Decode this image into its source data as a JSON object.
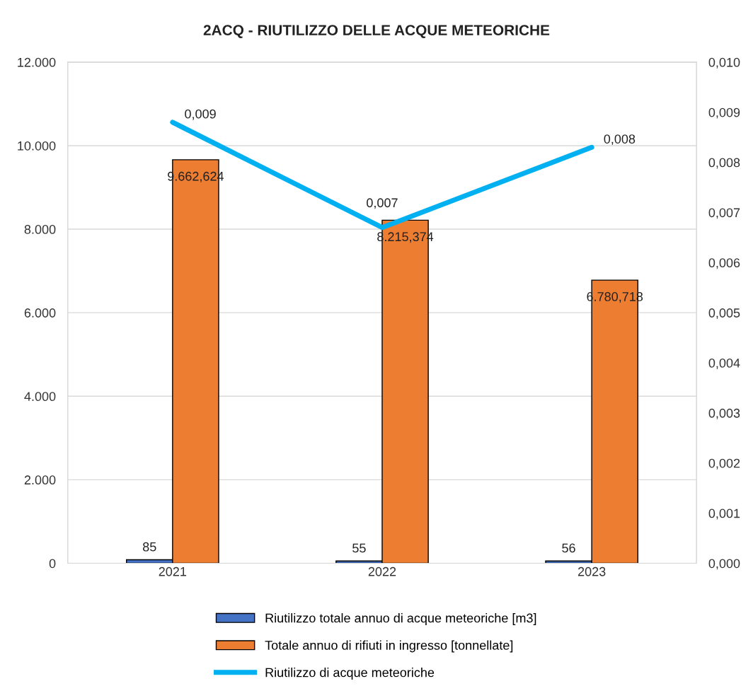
{
  "chart_data": {
    "type": "bar",
    "title": "2ACQ - RIUTILIZZO DELLE ACQUE METEORICHE",
    "categories": [
      "2021",
      "2022",
      "2023"
    ],
    "series": [
      {
        "name": "Riutilizzo totale annuo di acque meteoriche [m3]",
        "color": "#4472c4",
        "values": [
          85,
          55,
          56
        ],
        "value_labels": [
          "85",
          "55",
          "56"
        ]
      },
      {
        "name": "Totale annuo di rifiuti in ingresso [tonnellate]",
        "color": "#ed7d31",
        "values": [
          9662.624,
          8215.374,
          6780.718
        ],
        "value_labels": [
          "9.662,624",
          "8.215,374",
          "6.780,718"
        ]
      },
      {
        "name": "Riutilizzo di acque meteoriche",
        "type": "line",
        "axis": "y2",
        "color": "#00b0f0",
        "values": [
          0.0088,
          0.0067,
          0.0083
        ],
        "value_labels": [
          "0,009",
          "0,007",
          "0,008"
        ]
      }
    ],
    "ylim": [
      0,
      12000
    ],
    "yticks": [
      {
        "value": 0,
        "label": "0"
      },
      {
        "value": 2000,
        "label": "2.000"
      },
      {
        "value": 4000,
        "label": "4.000"
      },
      {
        "value": 6000,
        "label": "6.000"
      },
      {
        "value": 8000,
        "label": "8.000"
      },
      {
        "value": 10000,
        "label": "10.000"
      },
      {
        "value": 12000,
        "label": "12.000"
      }
    ],
    "y2lim": [
      0,
      0.01
    ],
    "y2ticks": [
      {
        "value": 0,
        "label": "0,000"
      },
      {
        "value": 0.001,
        "label": "0,001"
      },
      {
        "value": 0.002,
        "label": "0,002"
      },
      {
        "value": 0.003,
        "label": "0,003"
      },
      {
        "value": 0.004,
        "label": "0,004"
      },
      {
        "value": 0.005,
        "label": "0,005"
      },
      {
        "value": 0.006,
        "label": "0,006"
      },
      {
        "value": 0.007,
        "label": "0,007"
      },
      {
        "value": 0.008,
        "label": "0,008"
      },
      {
        "value": 0.009,
        "label": "0,009"
      },
      {
        "value": 0.01,
        "label": "0,010"
      }
    ],
    "grid": "y",
    "legend": "bottom"
  }
}
